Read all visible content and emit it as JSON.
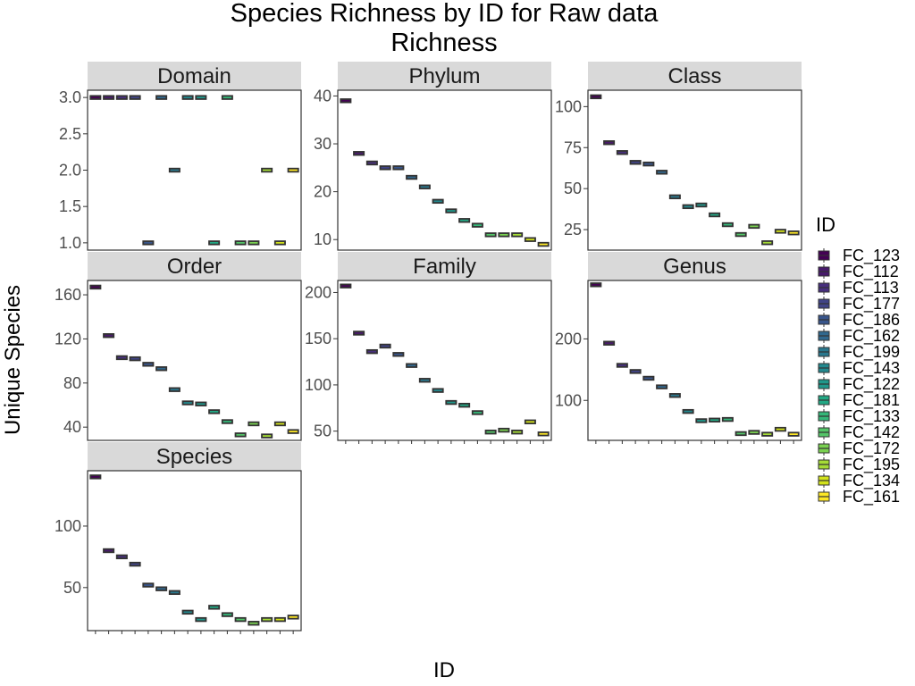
{
  "chart_data": {
    "type": "boxplot",
    "title_line1": "Species Richness by ID for Raw data",
    "title_line2": "Richness",
    "xlabel": "ID",
    "ylabel": "Unique Species",
    "legend_title": "ID",
    "legend_position": "right",
    "grid": false,
    "ids": [
      "FC_123",
      "FC_112",
      "FC_113",
      "FC_177",
      "FC_186",
      "FC_162",
      "FC_199",
      "FC_143",
      "FC_122",
      "FC_181",
      "FC_133",
      "FC_142",
      "FC_172",
      "FC_195",
      "FC_134",
      "FC_161"
    ],
    "colors": [
      "#440154",
      "#481A6C",
      "#472F7D",
      "#414487",
      "#39568C",
      "#31688E",
      "#2A788E",
      "#23888E",
      "#1F988B",
      "#22A884",
      "#35B779",
      "#54C568",
      "#7AD151",
      "#A5DB36",
      "#D2E21B",
      "#FDE725"
    ],
    "panels": [
      {
        "name": "Domain",
        "ylim": [
          0.9,
          3.1
        ],
        "ticks": [
          1.0,
          1.5,
          2.0,
          2.5,
          3.0
        ],
        "tick_labels": [
          "1.0",
          "1.5",
          "2.0",
          "2.5",
          "3.0"
        ],
        "values": [
          3,
          3,
          3,
          3,
          1,
          3,
          2,
          3,
          3,
          1,
          3,
          1,
          1,
          2,
          1,
          2
        ]
      },
      {
        "name": "Phylum",
        "ylim": [
          7.8,
          41.2
        ],
        "ticks": [
          10,
          20,
          30,
          40
        ],
        "tick_labels": [
          "10",
          "20",
          "30",
          "40"
        ],
        "values": [
          39,
          28,
          26,
          25,
          25,
          23,
          21,
          18,
          16,
          14,
          13,
          11,
          11,
          11,
          10,
          9
        ]
      },
      {
        "name": "Class",
        "ylim": [
          12.5,
          110
        ],
        "ticks": [
          25,
          50,
          75,
          100
        ],
        "tick_labels": [
          "25",
          "50",
          "75",
          "100"
        ],
        "values": [
          106,
          78,
          72,
          66,
          65,
          60,
          45,
          39,
          40,
          34,
          28,
          22,
          27,
          17,
          24,
          23
        ]
      },
      {
        "name": "Order",
        "ylim": [
          28,
          173
        ],
        "ticks": [
          40,
          80,
          120,
          160
        ],
        "tick_labels": [
          "40",
          "80",
          "120",
          "160"
        ],
        "values": [
          167,
          123,
          103,
          102,
          97,
          93,
          74,
          62,
          61,
          54,
          45,
          33,
          43,
          32,
          43,
          36
        ]
      },
      {
        "name": "Family",
        "ylim": [
          40,
          213
        ],
        "ticks": [
          50,
          100,
          150,
          200
        ],
        "tick_labels": [
          "50",
          "100",
          "150",
          "200"
        ],
        "values": [
          207,
          156,
          136,
          142,
          133,
          121,
          105,
          94,
          81,
          78,
          70,
          49,
          51,
          49,
          60,
          47
        ]
      },
      {
        "name": "Genus",
        "ylim": [
          35,
          295
        ],
        "ticks": [
          100,
          200
        ],
        "tick_labels": [
          "100",
          "200"
        ],
        "values": [
          288,
          193,
          157,
          147,
          136,
          122,
          108,
          82,
          67,
          68,
          69,
          46,
          48,
          45,
          53,
          45
        ]
      },
      {
        "name": "Species",
        "ylim": [
          15,
          145
        ],
        "ticks": [
          50,
          100
        ],
        "tick_labels": [
          "50",
          "100"
        ],
        "values": [
          140,
          80,
          75,
          69,
          52,
          49,
          46,
          30,
          24,
          34,
          28,
          24,
          21,
          24,
          24,
          26
        ]
      }
    ]
  }
}
